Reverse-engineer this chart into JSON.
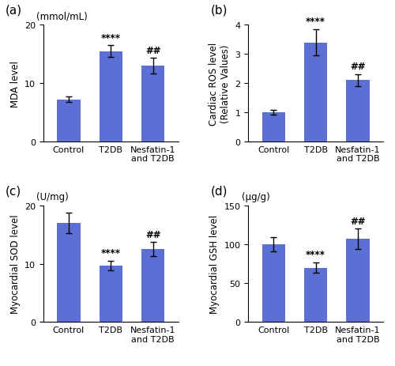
{
  "subplots": [
    {
      "label": "(a)",
      "unit_label": "(mmol/mL)",
      "ylabel": "MDA level",
      "categories": [
        "Control",
        "T2DB",
        "Nesfatin-1\nand T2DB"
      ],
      "values": [
        7.2,
        15.5,
        13.0
      ],
      "errors": [
        0.5,
        1.0,
        1.3
      ],
      "ylim": [
        0,
        20
      ],
      "yticks": [
        0,
        10,
        20
      ],
      "sig_labels": [
        "",
        "****",
        "##"
      ]
    },
    {
      "label": "(b)",
      "unit_label": null,
      "ylabel": "Cardiac ROS level\n(Relative Values)",
      "categories": [
        "Control",
        "T2DB",
        "Nesfatin-1\nand T2DB"
      ],
      "values": [
        1.0,
        3.4,
        2.1
      ],
      "errors": [
        0.07,
        0.45,
        0.2
      ],
      "ylim": [
        0,
        4
      ],
      "yticks": [
        0,
        1,
        2,
        3,
        4
      ],
      "sig_labels": [
        "",
        "****",
        "##"
      ]
    },
    {
      "label": "(c)",
      "unit_label": "(U/mg)",
      "ylabel": "Myocardial SOD level",
      "categories": [
        "Control",
        "T2DB",
        "Nesfatin-1\nand T2DB"
      ],
      "values": [
        17.0,
        9.7,
        12.5
      ],
      "errors": [
        1.8,
        0.8,
        1.2
      ],
      "ylim": [
        0,
        20
      ],
      "yticks": [
        0,
        10,
        20
      ],
      "sig_labels": [
        "",
        "****",
        "##"
      ]
    },
    {
      "label": "(d)",
      "unit_label": "(μg/g)",
      "ylabel": "Myocardial GSH level",
      "categories": [
        "Control",
        "T2DB",
        "Nesfatin-1\nand T2DB"
      ],
      "values": [
        100.0,
        70.0,
        107.0
      ],
      "errors": [
        9.0,
        7.0,
        13.0
      ],
      "ylim": [
        0,
        150
      ],
      "yticks": [
        0,
        50,
        100,
        150
      ],
      "sig_labels": [
        "",
        "****",
        "##"
      ]
    }
  ],
  "bar_color": "#5B6FD4",
  "bar_width": 0.55,
  "capsize": 3,
  "error_color": "black",
  "background_color": "#ffffff",
  "tick_fontsize": 8,
  "ylabel_fontsize": 8.5,
  "unit_fontsize": 8.5,
  "sig_fontsize": 8.5,
  "panel_label_fontsize": 11
}
